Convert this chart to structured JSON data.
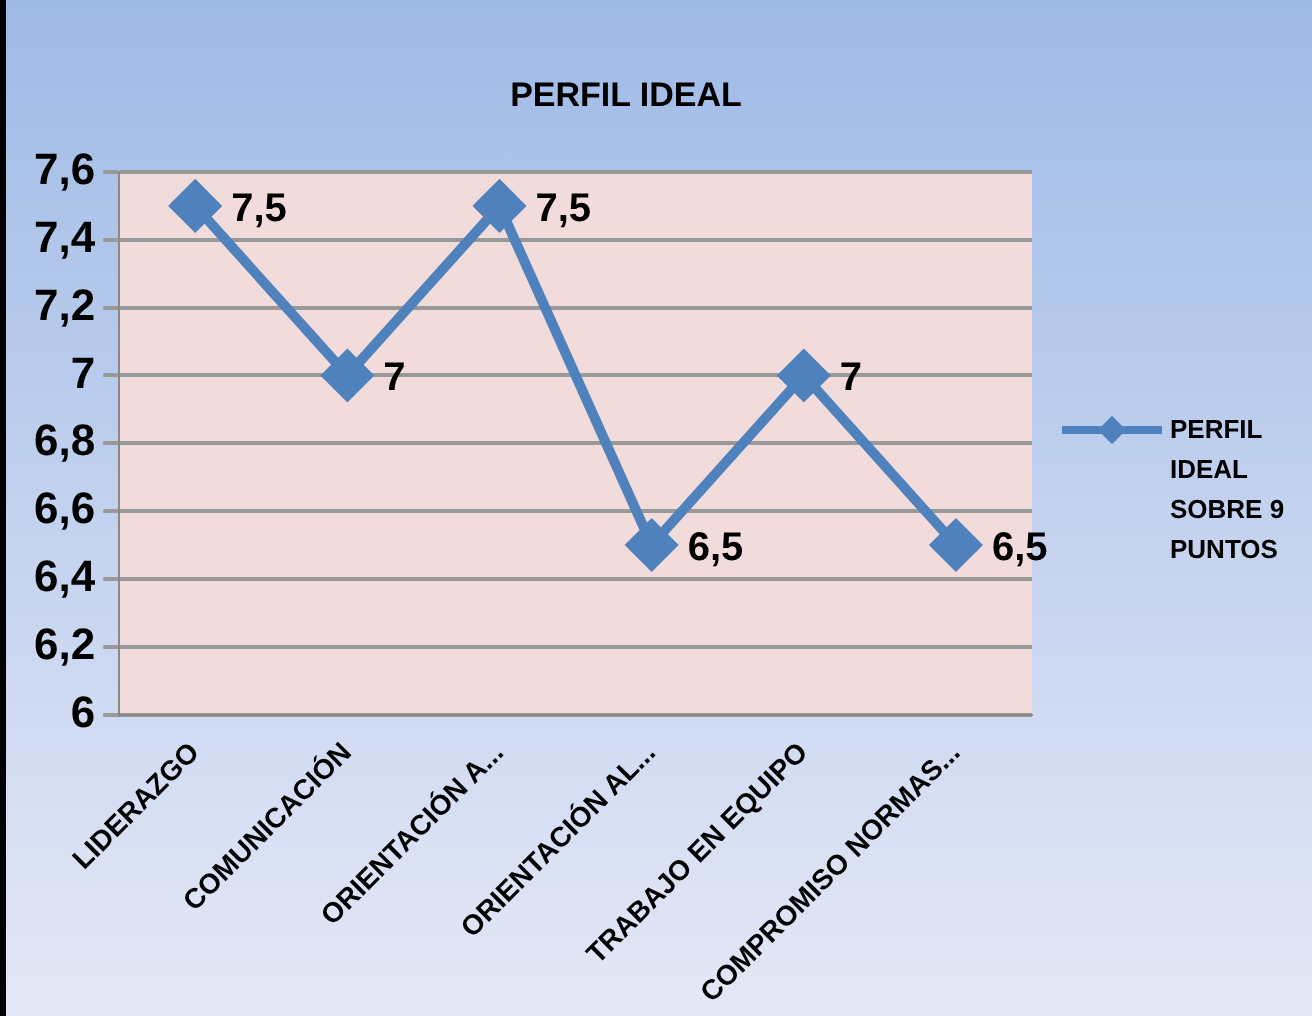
{
  "chart_data": {
    "type": "line",
    "title": "PERFIL IDEAL",
    "categories": [
      "LIDERAZGO",
      "COMUNICACIÓN",
      "ORIENTACIÓN A...",
      "ORIENTACIÓN AL...",
      "TRABAJO EN EQUIPO",
      "COMPROMISO NORMAS..."
    ],
    "series": [
      {
        "name": "PERFIL IDEAL SOBRE 9 PUNTOS",
        "color": "#4f81bd",
        "values": [
          7.5,
          7,
          7.5,
          6.5,
          7,
          6.5
        ],
        "value_labels": [
          "7,5",
          "7",
          "7,5",
          "6,5",
          "7",
          "6,5"
        ]
      }
    ],
    "ylim": [
      6,
      7.6
    ],
    "yticks": [
      6,
      {
        "value": 6.2,
        "label": "6,2"
      },
      {
        "value": 6.4,
        "label": "6,4"
      },
      {
        "value": 6.6,
        "label": "6,6"
      },
      {
        "value": 6.8,
        "label": "6,8"
      },
      7,
      {
        "value": 7.2,
        "label": "7,2"
      },
      {
        "value": 7.4,
        "label": "7,4"
      },
      {
        "value": 7.6,
        "label": "7,6"
      }
    ],
    "grid": "y",
    "legend": "right",
    "marker": "diamond",
    "line_style": "solid"
  }
}
